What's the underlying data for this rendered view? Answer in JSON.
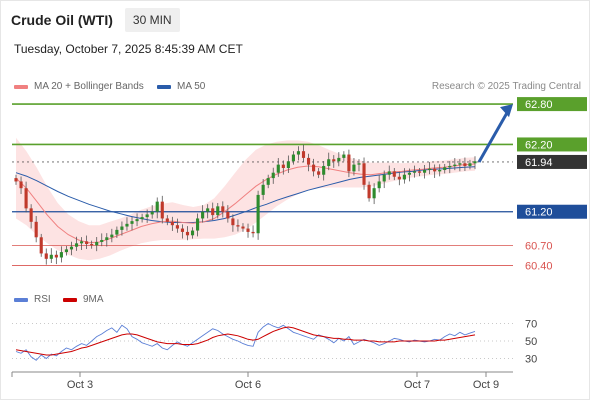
{
  "header": {
    "title": "Crude Oil (WTI)",
    "timeframe": "30 MIN"
  },
  "timestamp": "Tuesday, October 7, 2025 8:45:39 AM CET",
  "legend": {
    "ma20": {
      "label": "MA 20 + Bollinger Bands",
      "color": "#f08080"
    },
    "ma50": {
      "label": "MA 50",
      "color": "#2a5caa"
    }
  },
  "credit": "Research © 2025 Trading Central",
  "rsi_legend": {
    "rsi": {
      "label": "RSI",
      "color": "#5b7fd6"
    },
    "ma9": {
      "label": "9MA",
      "color": "#cc0000"
    }
  },
  "colors": {
    "up": "#2e8b2e",
    "down": "#c0392b",
    "arrow": "#2a5caa",
    "band": "#fde3e3"
  },
  "chart_data": [
    {
      "type": "candlestick",
      "title": "Crude Oil (WTI)",
      "price_range": [
        60.2,
        62.95
      ],
      "x_ticks": [
        "Oct 3",
        "Oct 6",
        "Oct 7",
        "Oct 9"
      ],
      "levels": [
        {
          "value": 62.8,
          "label": "62.80",
          "kind": "resistance",
          "color": "#5aa02c"
        },
        {
          "value": 62.2,
          "label": "62.20",
          "kind": "resistance",
          "color": "#5aa02c"
        },
        {
          "value": 61.94,
          "label": "61.94",
          "kind": "last",
          "color": "#333333"
        },
        {
          "value": 61.2,
          "label": "61.20",
          "kind": "pivot",
          "color": "#1f4e9a"
        },
        {
          "value": 60.7,
          "label": "60.70",
          "kind": "support",
          "color": "#d9534f"
        },
        {
          "value": 60.4,
          "label": "60.40",
          "kind": "support",
          "color": "#d9534f"
        }
      ],
      "close_approx": [
        61.65,
        61.55,
        61.25,
        61.05,
        60.82,
        60.58,
        60.5,
        60.56,
        60.52,
        60.6,
        60.64,
        60.68,
        60.73,
        60.76,
        60.72,
        60.7,
        60.75,
        60.78,
        60.82,
        60.86,
        60.93,
        60.98,
        61.02,
        61.06,
        61.09,
        61.12,
        61.16,
        61.2,
        61.35,
        61.1,
        61.05,
        61.0,
        60.95,
        60.9,
        60.85,
        60.92,
        61.1,
        61.2,
        61.25,
        61.15,
        61.28,
        61.2,
        61.1,
        61.0,
        60.98,
        60.95,
        60.9,
        60.88,
        61.45,
        61.6,
        61.7,
        61.78,
        61.9,
        61.85,
        61.95,
        62.05,
        62.1,
        62.0,
        61.9,
        61.8,
        61.75,
        61.88,
        61.98,
        61.95,
        62.0,
        62.05,
        61.8,
        61.9,
        61.92,
        61.6,
        61.4,
        61.55,
        61.65,
        61.75,
        61.8,
        61.72,
        61.68,
        61.75,
        61.78,
        61.8,
        61.78,
        61.82,
        61.84,
        61.8,
        61.82,
        61.86,
        61.88,
        61.9,
        61.92,
        61.88,
        61.92,
        61.95
      ],
      "ma50_approx": [
        61.78,
        61.73,
        61.66,
        61.58,
        61.5,
        61.43,
        61.37,
        61.31,
        61.26,
        61.21,
        61.17,
        61.13,
        61.1,
        61.07,
        61.05,
        61.04,
        61.04,
        61.04,
        61.05,
        61.07,
        61.1,
        61.15,
        61.2,
        61.26,
        61.31,
        61.37,
        61.42,
        61.47,
        61.52,
        61.56,
        61.6,
        61.64,
        61.68,
        61.71,
        61.73,
        61.75,
        61.77,
        61.79,
        61.8,
        61.82,
        61.83,
        61.84,
        61.85,
        61.86,
        61.87
      ],
      "ma20_approx": [
        61.7,
        61.55,
        61.35,
        61.15,
        60.98,
        60.86,
        60.78,
        60.74,
        60.75,
        60.8,
        60.86,
        60.92,
        60.98,
        61.02,
        61.05,
        61.06,
        61.04,
        61.03,
        61.05,
        61.1,
        61.2,
        61.32,
        61.45,
        61.58,
        61.68,
        61.76,
        61.82,
        61.86,
        61.88,
        61.87,
        61.84,
        61.81,
        61.78,
        61.76,
        61.75,
        61.77,
        61.79,
        61.8,
        61.82,
        61.83,
        61.85,
        61.86,
        61.88,
        61.9,
        61.91
      ],
      "bollinger_half_width_approx": [
        0.6,
        0.55,
        0.5,
        0.42,
        0.35,
        0.3,
        0.28,
        0.26,
        0.25,
        0.25,
        0.24,
        0.24,
        0.25,
        0.26,
        0.27,
        0.28,
        0.26,
        0.24,
        0.25,
        0.3,
        0.38,
        0.46,
        0.52,
        0.54,
        0.52,
        0.48,
        0.44,
        0.4,
        0.36,
        0.32,
        0.28,
        0.25,
        0.22,
        0.2,
        0.18,
        0.16,
        0.14,
        0.12,
        0.11,
        0.1,
        0.1,
        0.1,
        0.1,
        0.1,
        0.1
      ],
      "forecast_arrow": {
        "from": 61.94,
        "to": 62.8
      }
    },
    {
      "type": "line",
      "title": "RSI",
      "y_ticks": [
        70,
        50,
        30
      ],
      "ylim": [
        18,
        82
      ],
      "series": [
        {
          "name": "RSI",
          "values": [
            38,
            36,
            40,
            32,
            28,
            34,
            30,
            35,
            33,
            38,
            42,
            40,
            44,
            47,
            45,
            50,
            55,
            58,
            62,
            65,
            60,
            68,
            64,
            55,
            52,
            48,
            46,
            44,
            47,
            42,
            40,
            45,
            49,
            46,
            44,
            48,
            52,
            56,
            60,
            64,
            62,
            58,
            55,
            52,
            50,
            47,
            45,
            44,
            60,
            66,
            70,
            67,
            65,
            68,
            64,
            60,
            58,
            56,
            54,
            52,
            57,
            55,
            52,
            48,
            53,
            50,
            55,
            46,
            49,
            52,
            50,
            48,
            45,
            47,
            50,
            53,
            52,
            50,
            49,
            51,
            50,
            49,
            50,
            52,
            51,
            55,
            58,
            56,
            60,
            57,
            59,
            61
          ]
        },
        {
          "name": "9MA",
          "values": [
            40,
            39,
            38,
            37,
            36,
            35,
            34,
            34,
            35,
            36,
            37,
            38,
            40,
            42,
            43,
            45,
            47,
            49,
            51,
            53,
            55,
            57,
            58,
            58,
            57,
            55,
            53,
            51,
            49,
            48,
            47,
            47,
            47,
            46,
            46,
            46,
            47,
            49,
            51,
            54,
            56,
            57,
            58,
            57,
            56,
            54,
            52,
            51,
            52,
            55,
            58,
            61,
            63,
            65,
            66,
            65,
            63,
            61,
            59,
            57,
            56,
            55,
            54,
            53,
            53,
            52,
            52,
            51,
            51,
            51,
            50,
            50,
            49,
            49,
            49,
            49,
            50,
            50,
            50,
            50,
            50,
            50,
            50,
            50,
            51,
            51,
            52,
            53,
            54,
            55,
            56,
            57
          ]
        }
      ]
    }
  ]
}
